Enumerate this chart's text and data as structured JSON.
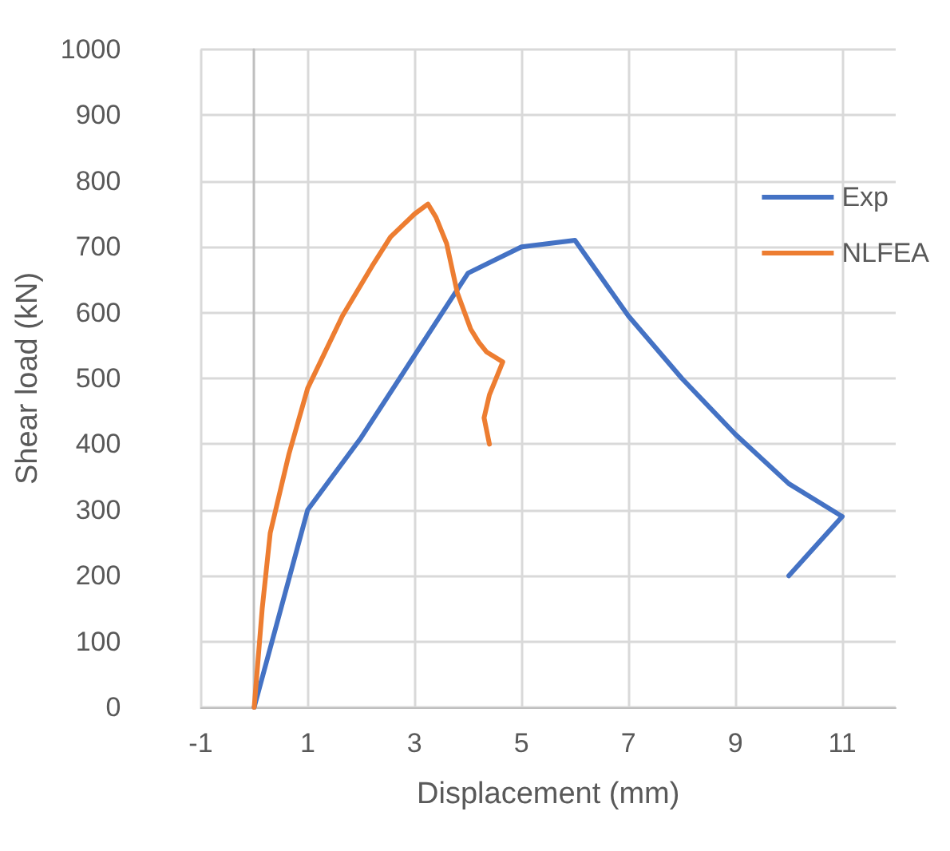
{
  "chart_data": {
    "type": "line",
    "xlabel": "Displacement (mm)",
    "ylabel": "Shear load (kN)",
    "xlim": [
      -1,
      12
    ],
    "xticks": [
      -1,
      1,
      3,
      5,
      7,
      9,
      11
    ],
    "ylim": [
      0,
      1000
    ],
    "yticks": [
      0,
      100,
      200,
      300,
      400,
      500,
      600,
      700,
      800,
      900,
      1000
    ],
    "grid": true,
    "legend": "right",
    "marker": "none",
    "line_style": "solid",
    "series": [
      {
        "name": "Exp",
        "color": "#4472c4",
        "x": [
          0,
          1,
          2,
          4,
          5,
          6,
          7,
          8,
          9,
          10,
          11,
          10
        ],
        "values": [
          0,
          300,
          410,
          660,
          700,
          710,
          595,
          500,
          415,
          340,
          290,
          200
        ]
      },
      {
        "name": "NLFEA",
        "color": "#ed7d31",
        "x": [
          0,
          0.15,
          0.3,
          0.65,
          1,
          1.65,
          2.2,
          2.55,
          3,
          3.25,
          3.4,
          3.6,
          3.8,
          4.05,
          4.2,
          4.35,
          4.65,
          4.4,
          4.3,
          4.4
        ],
        "values": [
          0,
          150,
          265,
          385,
          485,
          595,
          670,
          715,
          750,
          765,
          745,
          705,
          630,
          575,
          555,
          540,
          525,
          475,
          440,
          400
        ]
      }
    ]
  }
}
